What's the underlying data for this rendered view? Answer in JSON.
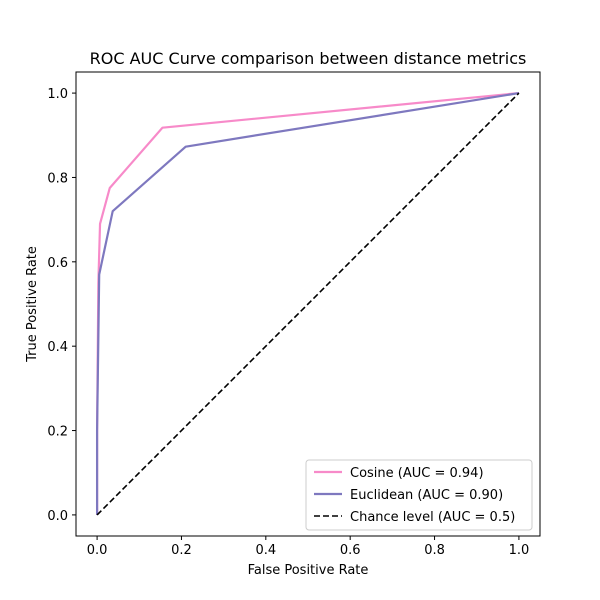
{
  "chart_data": {
    "type": "line",
    "title": "ROC AUC Curve comparison between distance metrics",
    "xlabel": "False Positive Rate",
    "ylabel": "True Positive Rate",
    "xlim": [
      -0.05,
      1.05
    ],
    "ylim": [
      -0.05,
      1.05
    ],
    "x_ticks": [
      "0.0",
      "0.2",
      "0.4",
      "0.6",
      "0.8",
      "1.0"
    ],
    "y_ticks": [
      "0.0",
      "0.2",
      "0.4",
      "0.6",
      "0.8",
      "1.0"
    ],
    "grid": false,
    "legend_position": "lower-right",
    "series": [
      {
        "name": "Cosine (AUC = 0.94)",
        "color": "#f78ac9",
        "style": "solid",
        "points": [
          [
            0.0,
            0.0
          ],
          [
            0.0,
            0.2
          ],
          [
            0.003,
            0.55
          ],
          [
            0.007,
            0.69
          ],
          [
            0.03,
            0.775
          ],
          [
            0.155,
            0.918
          ],
          [
            1.0,
            1.0
          ]
        ]
      },
      {
        "name": "Euclidean (AUC = 0.90)",
        "color": "#7e78bf",
        "style": "solid",
        "points": [
          [
            0.0,
            0.0
          ],
          [
            0.0,
            0.2
          ],
          [
            0.005,
            0.57
          ],
          [
            0.037,
            0.72
          ],
          [
            0.21,
            0.873
          ],
          [
            1.0,
            1.0
          ]
        ]
      },
      {
        "name": "Chance level (AUC = 0.5)",
        "color": "#000000",
        "style": "dashed",
        "points": [
          [
            0.0,
            0.0
          ],
          [
            1.0,
            1.0
          ]
        ]
      }
    ]
  }
}
